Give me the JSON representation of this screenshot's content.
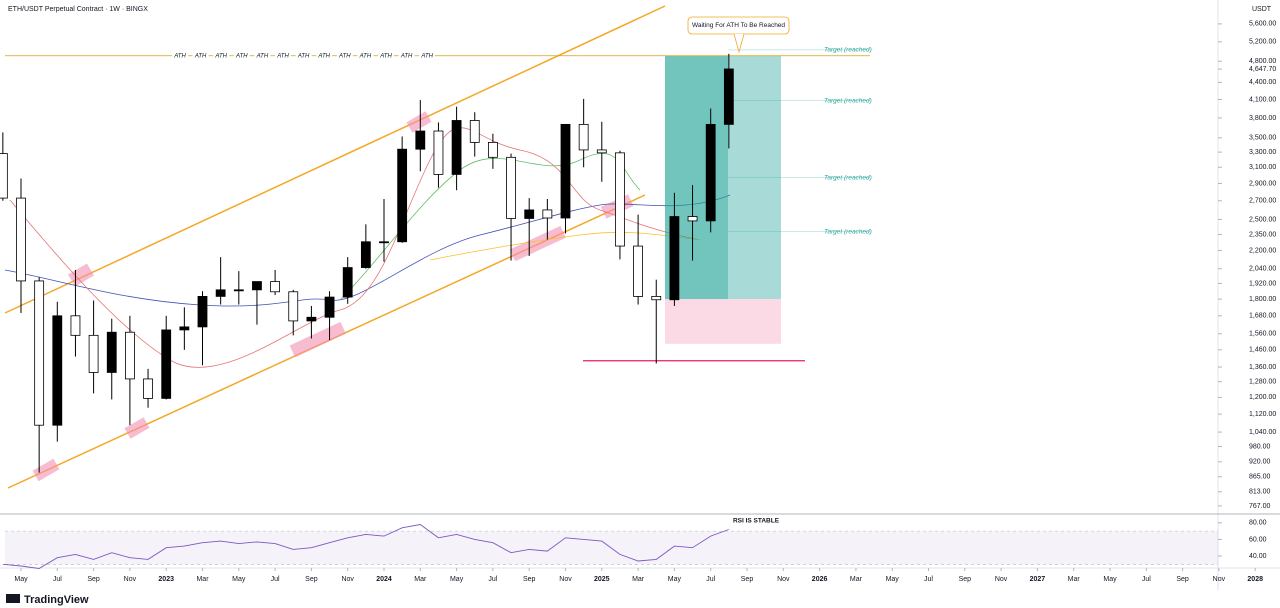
{
  "chart_data": {
    "type": "candlestick",
    "title": "ETH/USDT Perpetual Contract · 1W · BINGX",
    "currency": "USDT",
    "log_scale": true,
    "up_color": "#000000",
    "down_color": "#ffffff",
    "ylim": [
      748,
      6180
    ],
    "yticks": [
      {
        "value": 5600,
        "label": "5,600.00"
      },
      {
        "value": 5200,
        "label": "5,200.00"
      },
      {
        "value": 4800,
        "label": "4,800.00"
      },
      {
        "value": 4400,
        "label": "4,400.00"
      },
      {
        "value": 4100,
        "label": "4,100.00"
      },
      {
        "value": 3800,
        "label": "3,800.00"
      },
      {
        "value": 3500,
        "label": "3,500.00"
      },
      {
        "value": 3300,
        "label": "3,300.00"
      },
      {
        "value": 3100,
        "label": "3,100.00"
      },
      {
        "value": 2900,
        "label": "2,900.00"
      },
      {
        "value": 2700,
        "label": "2,700.00"
      },
      {
        "value": 2500,
        "label": "2,500.00"
      },
      {
        "value": 2350,
        "label": "2,350.00"
      },
      {
        "value": 2200,
        "label": "2,200.00"
      },
      {
        "value": 2040,
        "label": "2,040.00"
      },
      {
        "value": 1920,
        "label": "1,920.00"
      },
      {
        "value": 1800,
        "label": "1,800.00"
      },
      {
        "value": 1680,
        "label": "1,680.00"
      },
      {
        "value": 1560,
        "label": "1,560.00"
      },
      {
        "value": 1460,
        "label": "1,460.00"
      },
      {
        "value": 1360,
        "label": "1,360.00"
      },
      {
        "value": 1280,
        "label": "1,280.00"
      },
      {
        "value": 1200,
        "label": "1,200.00"
      },
      {
        "value": 1120,
        "label": "1,120.00"
      },
      {
        "value": 1040,
        "label": "1,040.00"
      },
      {
        "value": 980,
        "label": "980.00"
      },
      {
        "value": 920,
        "label": "920.00"
      },
      {
        "value": 865,
        "label": "865.00"
      },
      {
        "value": 813,
        "label": "813.00"
      },
      {
        "value": 767,
        "label": "767.00"
      }
    ],
    "last_price": {
      "value": 4647.7,
      "label": "4,647.70"
    },
    "xticks": [
      "May",
      "Jul",
      "Sep",
      "Nov",
      "2023",
      "Mar",
      "May",
      "Jul",
      "Sep",
      "Nov",
      "2024",
      "Mar",
      "May",
      "Jul",
      "Sep",
      "Nov",
      "2025",
      "Mar",
      "May",
      "Jul",
      "Sep",
      "Nov",
      "2026",
      "Mar",
      "May",
      "Jul",
      "Sep",
      "Nov",
      "2027",
      "Mar",
      "May",
      "Jul",
      "Sep",
      "Nov",
      "2028"
    ],
    "open": [
      3280,
      2730,
      1940,
      1070,
      1680,
      1550,
      1330,
      1570,
      1295,
      1195,
      1585,
      1605,
      1820,
      1870,
      1870,
      1935,
      1855,
      1645,
      1670,
      1815,
      2050,
      2280,
      2280,
      3340,
      3600,
      3010,
      3760,
      3435,
      3230,
      2510,
      2600,
      2515,
      3700,
      3330,
      3290,
      2240,
      1820,
      1795,
      2530,
      2485,
      3700
    ],
    "high": [
      3580,
      2960,
      1970,
      1780,
      2030,
      1790,
      1660,
      1680,
      1350,
      1680,
      1740,
      1860,
      2140,
      2020,
      1930,
      2030,
      1870,
      1750,
      1860,
      2140,
      2450,
      2720,
      3520,
      4090,
      3730,
      3980,
      3890,
      3560,
      3280,
      2730,
      2720,
      3680,
      4110,
      3740,
      3320,
      2550,
      1950,
      2790,
      2880,
      3950,
      4950
    ],
    "low": [
      2700,
      1700,
      880,
      1000,
      1420,
      1220,
      1190,
      1070,
      1150,
      1190,
      1460,
      1370,
      1760,
      1760,
      1620,
      1830,
      1550,
      1530,
      1520,
      1765,
      2040,
      2100,
      2270,
      3050,
      2850,
      2820,
      3240,
      3080,
      2110,
      2150,
      2300,
      2360,
      3100,
      2920,
      2120,
      1760,
      1380,
      1750,
      2110,
      2370,
      3350
    ],
    "close": [
      2730,
      1940,
      1070,
      1680,
      1550,
      1330,
      1570,
      1295,
      1195,
      1585,
      1605,
      1820,
      1870,
      1870,
      1935,
      1855,
      1645,
      1670,
      1815,
      2050,
      2280,
      2280,
      3340,
      3600,
      3010,
      3760,
      3435,
      3230,
      2510,
      2600,
      2515,
      3700,
      3330,
      3290,
      2240,
      1820,
      1795,
      2530,
      2485,
      3700,
      4650
    ],
    "ath": {
      "level": 4910,
      "label": "ATH",
      "count": 13
    },
    "callout": "Waiting For ATH To Be Reached",
    "targets": [
      {
        "level": 5030,
        "label": "Target (reached)"
      },
      {
        "level": 4080,
        "label": "Target (reached)"
      },
      {
        "level": 2970,
        "label": "Target (reached)"
      },
      {
        "level": 2376,
        "label": "Target (reached)"
      }
    ],
    "position": {
      "target": 4910,
      "entry": 1800,
      "stop": 1497
    },
    "support": 1396,
    "rsi": {
      "title": "RSI IS STABLE",
      "color": "#7e57c2",
      "ylim": [
        28,
        87
      ],
      "yticks": [
        {
          "value": 80,
          "label": "80.00"
        },
        {
          "value": 60,
          "label": "60.00"
        },
        {
          "value": 40,
          "label": "40.00"
        }
      ],
      "band": [
        30,
        70
      ],
      "values": [
        30,
        28,
        25,
        38,
        42,
        36,
        44,
        38,
        36,
        50,
        52,
        56,
        58,
        55,
        57,
        55,
        48,
        50,
        56,
        62,
        66,
        64,
        74,
        78,
        62,
        66,
        60,
        56,
        44,
        48,
        46,
        62,
        60,
        58,
        42,
        34,
        36,
        52,
        50,
        64,
        72
      ]
    },
    "brand": "TradingView"
  }
}
